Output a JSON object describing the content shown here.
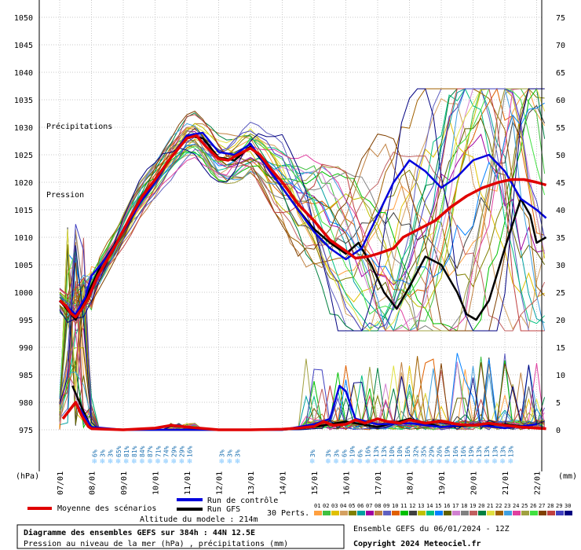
{
  "chart_data": {
    "type": "line",
    "title": "Diagramme des ensembles GEFS sur 384h : 44N 12.5E",
    "subtitle": "Pression au niveau de la mer (hPa) , précipitations (mm)",
    "left_axis": {
      "label": "(hPa)",
      "min": 975,
      "max": 1050,
      "ticks": [
        975,
        980,
        985,
        990,
        995,
        1000,
        1005,
        1010,
        1015,
        1020,
        1025,
        1030,
        1035,
        1040,
        1045,
        1050
      ]
    },
    "right_axis": {
      "label": "(mm)",
      "min": 0,
      "max": 75,
      "ticks": [
        0,
        5,
        10,
        15,
        20,
        25,
        30,
        35,
        40,
        45,
        50,
        55,
        60,
        65,
        70,
        75
      ]
    },
    "x_axis": {
      "dates": [
        "07/01",
        "08/01",
        "09/01",
        "10/01",
        "11/01",
        "12/01",
        "13/01",
        "14/01",
        "15/01",
        "16/01",
        "17/01",
        "18/01",
        "19/01",
        "20/01",
        "21/01",
        "22/01"
      ]
    },
    "inner_labels": {
      "precip": "Précipitations",
      "pressure": "Pression"
    },
    "snow_probabilities": [
      [
        "6%",
        "3%",
        "3%",
        "65%",
        "81%",
        "81%",
        "84%",
        "87%",
        "71%",
        "74%",
        "29%",
        "29%",
        "16%"
      ],
      [
        "3%",
        "3%",
        "3%"
      ],
      [
        "3%"
      ],
      [
        "3%",
        "3%",
        "6%",
        "19%",
        "6%",
        "16%",
        "13%",
        "13%",
        "10%",
        "10%",
        "16%",
        "32%",
        "35%",
        "29%",
        "26%",
        "19%",
        "16%",
        "16%",
        "19%",
        "13%",
        "13%",
        "13%",
        "13%",
        "13%"
      ]
    ],
    "series": [
      {
        "name": "Moyenne des scénarios",
        "color": "#e00000",
        "pressure": [
          [
            0,
            998.5
          ],
          [
            0.2,
            997.5
          ],
          [
            0.35,
            996.2
          ],
          [
            0.5,
            995.5
          ],
          [
            0.7,
            997
          ],
          [
            0.9,
            999
          ],
          [
            1.2,
            1003
          ],
          [
            1.5,
            1006
          ],
          [
            1.8,
            1009
          ],
          [
            2.2,
            1013.5
          ],
          [
            2.6,
            1017.5
          ],
          [
            3,
            1020.5
          ],
          [
            3.5,
            1024.5
          ],
          [
            4,
            1028
          ],
          [
            4.3,
            1028.5
          ],
          [
            4.6,
            1026.5
          ],
          [
            5,
            1024.3
          ],
          [
            5.3,
            1024
          ],
          [
            5.6,
            1025
          ],
          [
            6,
            1026.2
          ],
          [
            6.3,
            1025
          ],
          [
            6.7,
            1022
          ],
          [
            7,
            1020
          ],
          [
            7.5,
            1016
          ],
          [
            8,
            1013
          ],
          [
            8.5,
            1009.5
          ],
          [
            9,
            1007.5
          ],
          [
            9.3,
            1006.2
          ],
          [
            9.7,
            1006.5
          ],
          [
            10,
            1007
          ],
          [
            10.5,
            1008
          ],
          [
            10.8,
            1010
          ],
          [
            11.3,
            1011.5
          ],
          [
            11.8,
            1013
          ],
          [
            12.3,
            1015.5
          ],
          [
            12.8,
            1017.5
          ],
          [
            13.3,
            1019
          ],
          [
            13.8,
            1020
          ],
          [
            14.2,
            1020.5
          ],
          [
            14.6,
            1020.5
          ],
          [
            15,
            1020
          ],
          [
            15.3,
            1019.5
          ]
        ],
        "precip": [
          [
            0.1,
            2
          ],
          [
            0.3,
            3.5
          ],
          [
            0.5,
            5
          ],
          [
            0.7,
            2.5
          ],
          [
            0.9,
            0.6
          ],
          [
            1,
            0.2
          ],
          [
            2,
            0
          ],
          [
            3,
            0.3
          ],
          [
            3.5,
            0.8
          ],
          [
            4,
            0.5
          ],
          [
            5,
            0
          ],
          [
            6,
            0
          ],
          [
            7,
            0.1
          ],
          [
            7.5,
            0.3
          ],
          [
            8,
            0.6
          ],
          [
            8.3,
            1.5
          ],
          [
            8.6,
            0.8
          ],
          [
            9,
            1
          ],
          [
            9.3,
            1.8
          ],
          [
            9.6,
            1.2
          ],
          [
            10,
            2
          ],
          [
            10.3,
            1.5
          ],
          [
            10.7,
            1.2
          ],
          [
            11,
            1.8
          ],
          [
            11.5,
            1.2
          ],
          [
            12,
            1.6
          ],
          [
            12.5,
            1
          ],
          [
            13,
            0.8
          ],
          [
            13.5,
            1.2
          ],
          [
            14,
            0.8
          ],
          [
            14.5,
            0.5
          ],
          [
            15,
            0.3
          ],
          [
            15.3,
            0.2
          ]
        ]
      },
      {
        "name": "Run de contrôle",
        "color": "#0000dd",
        "pressure": [
          [
            0,
            998.5
          ],
          [
            0.5,
            996
          ],
          [
            0.8,
            999
          ],
          [
            1,
            1003
          ],
          [
            1.5,
            1006.5
          ],
          [
            2,
            1011
          ],
          [
            2.5,
            1016
          ],
          [
            3,
            1020
          ],
          [
            3.5,
            1024.5
          ],
          [
            4,
            1028.5
          ],
          [
            4.5,
            1029
          ],
          [
            5,
            1025.5
          ],
          [
            5.5,
            1025
          ],
          [
            6,
            1027
          ],
          [
            6.5,
            1023
          ],
          [
            7,
            1019
          ],
          [
            7.5,
            1015
          ],
          [
            8,
            1011
          ],
          [
            8.5,
            1008
          ],
          [
            9,
            1006
          ],
          [
            9.5,
            1008
          ],
          [
            10,
            1014
          ],
          [
            10.5,
            1020
          ],
          [
            11,
            1024
          ],
          [
            11.5,
            1022
          ],
          [
            12,
            1019
          ],
          [
            12.5,
            1021
          ],
          [
            13,
            1024
          ],
          [
            13.5,
            1025
          ],
          [
            14,
            1022
          ],
          [
            14.5,
            1017
          ],
          [
            15,
            1015
          ],
          [
            15.3,
            1013.5
          ]
        ],
        "precip": [
          [
            0.5,
            5
          ],
          [
            1,
            0.5
          ],
          [
            2,
            0
          ],
          [
            7,
            0
          ],
          [
            8,
            1
          ],
          [
            8.5,
            2
          ],
          [
            8.8,
            8
          ],
          [
            9,
            7
          ],
          [
            9.3,
            2
          ],
          [
            10,
            1
          ],
          [
            11,
            1.2
          ],
          [
            12,
            0.5
          ],
          [
            13,
            1
          ],
          [
            14,
            0.3
          ],
          [
            15,
            1
          ]
        ]
      },
      {
        "name": "Run GFS",
        "color": "#000000",
        "pressure": [
          [
            0,
            998.5
          ],
          [
            0.5,
            995
          ],
          [
            0.9,
            1000
          ],
          [
            1.3,
            1005
          ],
          [
            2,
            1011
          ],
          [
            2.5,
            1016
          ],
          [
            3,
            1020
          ],
          [
            3.5,
            1024.5
          ],
          [
            4,
            1028.5
          ],
          [
            4.5,
            1028
          ],
          [
            5,
            1024.5
          ],
          [
            5.5,
            1024
          ],
          [
            6,
            1026.5
          ],
          [
            6.5,
            1023
          ],
          [
            7,
            1019
          ],
          [
            7.5,
            1015
          ],
          [
            8,
            1011.5
          ],
          [
            8.5,
            1009
          ],
          [
            9,
            1007
          ],
          [
            9.4,
            1009
          ],
          [
            9.8,
            1005
          ],
          [
            10.2,
            1000
          ],
          [
            10.6,
            997
          ],
          [
            11,
            1001
          ],
          [
            11.5,
            1006.5
          ],
          [
            12,
            1005
          ],
          [
            12.5,
            1000
          ],
          [
            12.8,
            996
          ],
          [
            13.1,
            995
          ],
          [
            13.5,
            998.5
          ],
          [
            14,
            1008
          ],
          [
            14.5,
            1017
          ],
          [
            14.8,
            1014
          ],
          [
            15,
            1009
          ],
          [
            15.3,
            1010
          ]
        ],
        "precip": [
          [
            0.4,
            8
          ],
          [
            0.7,
            4
          ],
          [
            1,
            0.3
          ],
          [
            2,
            0
          ],
          [
            7,
            0
          ],
          [
            8,
            0.5
          ],
          [
            9,
            1.5
          ],
          [
            10,
            0.5
          ],
          [
            11,
            2
          ],
          [
            12,
            0.5
          ],
          [
            13,
            0.8
          ],
          [
            14,
            1
          ],
          [
            15,
            0.3
          ]
        ]
      }
    ],
    "legend": {
      "mean": "Moyenne des scénarios",
      "control": "Run de contrôle",
      "gfs": "Run GFS",
      "perts": "30 Perts."
    },
    "perturbations": [
      {
        "id": "01",
        "color": "#ffa040"
      },
      {
        "id": "02",
        "color": "#40c040"
      },
      {
        "id": "03",
        "color": "#e0c000"
      },
      {
        "id": "04",
        "color": "#d4a060"
      },
      {
        "id": "05",
        "color": "#808000"
      },
      {
        "id": "06",
        "color": "#00a0a0"
      },
      {
        "id": "07",
        "color": "#a000a0"
      },
      {
        "id": "08",
        "color": "#c08040"
      },
      {
        "id": "09",
        "color": "#6060c0"
      },
      {
        "id": "10",
        "color": "#e06000"
      },
      {
        "id": "11",
        "color": "#00c000"
      },
      {
        "id": "12",
        "color": "#404040"
      },
      {
        "id": "13",
        "color": "#c0c000"
      },
      {
        "id": "14",
        "color": "#00c080"
      },
      {
        "id": "15",
        "color": "#0080ff"
      },
      {
        "id": "16",
        "color": "#606000"
      },
      {
        "id": "17",
        "color": "#d080d0"
      },
      {
        "id": "18",
        "color": "#808080"
      },
      {
        "id": "19",
        "color": "#c06060"
      },
      {
        "id": "20",
        "color": "#008040"
      },
      {
        "id": "21",
        "color": "#e0e040"
      },
      {
        "id": "22",
        "color": "#a06000"
      },
      {
        "id": "23",
        "color": "#40a0e0"
      },
      {
        "id": "24",
        "color": "#e040a0"
      },
      {
        "id": "25",
        "color": "#a0a040"
      },
      {
        "id": "26",
        "color": "#40e040"
      },
      {
        "id": "27",
        "color": "#804000"
      },
      {
        "id": "28",
        "color": "#c04040"
      },
      {
        "id": "29",
        "color": "#4040c0"
      },
      {
        "id": "30",
        "color": "#000080"
      }
    ]
  },
  "footer": {
    "altitude": "Altitude du modele : 214m",
    "title": "Diagramme des ensembles GEFS sur 384h : 44N 12.5E",
    "subtitle": "Pression au niveau de la mer (hPa) , précipitations (mm)",
    "run": "Ensemble GEFS du 06/01/2024 - 12Z",
    "copyright": "Copyright 2024 Meteociel.fr"
  }
}
